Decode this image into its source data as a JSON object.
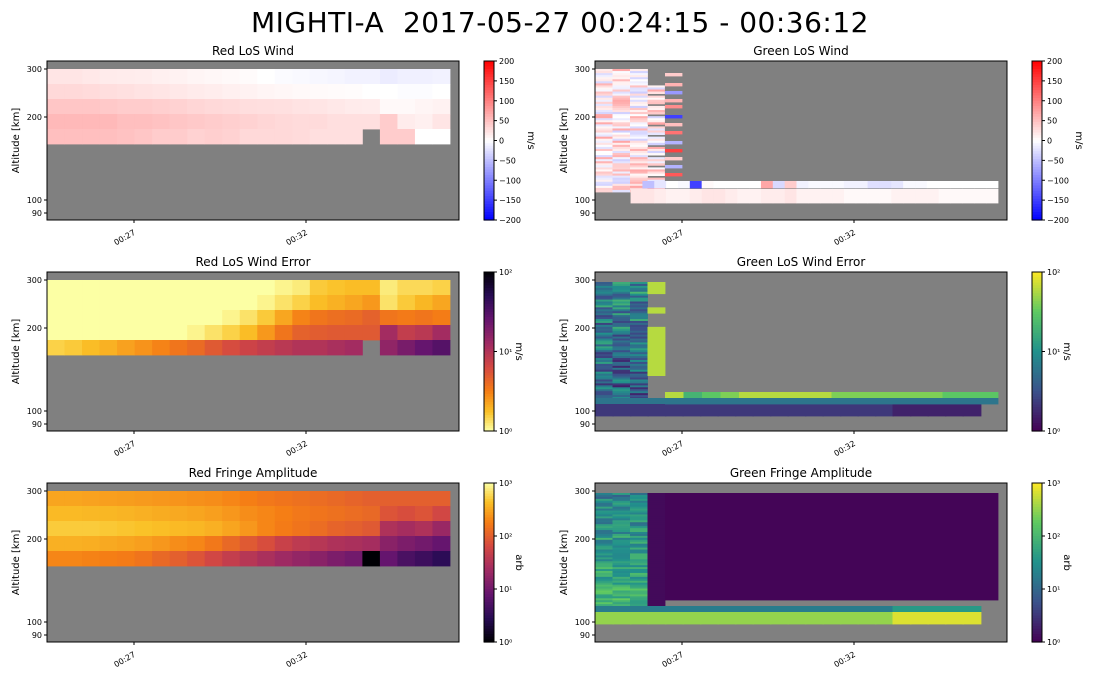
{
  "suptitle": "MIGHTI-A  2017-05-27 00:24:15 - 00:36:12",
  "chart_data": [
    {
      "id": "red-los-wind",
      "type": "heatmap",
      "title": "Red LoS Wind",
      "ylabel": "Altitude [km]",
      "xticks": [
        "00:27",
        "00:32"
      ],
      "yticks": [
        "300",
        "200",
        "100",
        "90"
      ],
      "colorbar": {
        "label": "m/s",
        "scale": "linear",
        "range": [
          -200,
          200
        ],
        "ticks": [
          "200",
          "150",
          "100",
          "50",
          "0",
          "−50",
          "−100",
          "−150",
          "−200"
        ],
        "colormap": "bwr"
      },
      "x_timestamps": [
        "00:24:40",
        "00:25:10",
        "00:25:40",
        "00:26:10",
        "00:26:40",
        "00:27:10",
        "00:27:40",
        "00:28:10",
        "00:28:40",
        "00:29:10",
        "00:29:40",
        "00:30:10",
        "00:30:40",
        "00:31:10",
        "00:31:40",
        "00:32:10",
        "00:32:40",
        "00:33:10",
        "00:33:40",
        "00:34:10",
        "00:34:40",
        "00:35:10",
        "00:35:40"
      ],
      "altitude_rows": [
        "300",
        "270",
        "240",
        "210",
        "180"
      ],
      "values": [
        [
          20,
          20,
          18,
          16,
          15,
          14,
          12,
          10,
          8,
          6,
          5,
          3,
          0,
          -3,
          -5,
          -6,
          -8,
          -10,
          -10,
          -15,
          -12,
          -12,
          -10
        ],
        [
          30,
          30,
          28,
          26,
          24,
          22,
          20,
          18,
          16,
          14,
          12,
          10,
          8,
          6,
          5,
          4,
          3,
          2,
          0,
          0,
          -2,
          -2,
          0
        ],
        [
          45,
          45,
          45,
          42,
          40,
          40,
          38,
          35,
          32,
          30,
          28,
          26,
          25,
          24,
          22,
          20,
          18,
          16,
          15,
          5,
          5,
          8,
          10
        ],
        [
          55,
          55,
          55,
          55,
          50,
          50,
          48,
          45,
          42,
          40,
          38,
          35,
          32,
          30,
          28,
          28,
          25,
          25,
          25,
          40,
          15,
          12,
          20
        ],
        [
          50,
          50,
          50,
          50,
          48,
          45,
          40,
          40,
          35,
          38,
          35,
          30,
          30,
          30,
          28,
          25,
          25,
          25,
          null,
          40,
          40,
          0,
          0
        ]
      ]
    },
    {
      "id": "green-los-wind",
      "type": "heatmap",
      "title": "Green LoS Wind",
      "ylabel": "Altitude [km]",
      "xticks": [
        "00:27",
        "00:32"
      ],
      "yticks": [
        "300",
        "200",
        "100",
        "90"
      ],
      "colorbar": {
        "label": "m/s",
        "scale": "linear",
        "range": [
          -200,
          200
        ],
        "ticks": [
          "200",
          "150",
          "100",
          "50",
          "0",
          "−50",
          "−100",
          "−150",
          "−200"
        ],
        "colormap": "bwr"
      }
    },
    {
      "id": "red-los-wind-error",
      "type": "heatmap",
      "title": "Red LoS Wind Error",
      "ylabel": "Altitude [km]",
      "xticks": [
        "00:27",
        "00:32"
      ],
      "yticks": [
        "300",
        "200",
        "100",
        "90"
      ],
      "colorbar": {
        "label": "m/s",
        "scale": "log",
        "range": [
          1,
          100
        ],
        "ticks": [
          "10²",
          "10¹",
          "10⁰"
        ],
        "colormap": "inferno_r"
      },
      "altitude_rows": [
        "300",
        "270",
        "240",
        "210",
        "180"
      ],
      "values": [
        [
          1.0,
          1.0,
          1.0,
          1.0,
          1.0,
          1.0,
          1.0,
          1.0,
          1.0,
          1.0,
          1.0,
          1.0,
          1.0,
          1.1,
          1.2,
          1.6,
          1.7,
          1.8,
          1.8,
          1.2,
          1.4,
          1.4,
          1.5
        ],
        [
          1.0,
          1.0,
          1.0,
          1.0,
          1.0,
          1.0,
          1.0,
          1.0,
          1.0,
          1.0,
          1.0,
          1.0,
          1.1,
          1.3,
          1.5,
          1.8,
          2.0,
          2.2,
          2.5,
          1.3,
          1.6,
          1.9,
          2.2
        ],
        [
          1.0,
          1.0,
          1.0,
          1.0,
          1.0,
          1.0,
          1.0,
          1.0,
          1.0,
          1.0,
          1.1,
          1.3,
          1.6,
          2.2,
          3.0,
          3.5,
          3.8,
          4.0,
          4.5,
          3.5,
          3.3,
          3.5,
          3.2
        ],
        [
          1.0,
          1.0,
          1.0,
          1.0,
          1.0,
          1.0,
          1.0,
          1.0,
          1.1,
          1.3,
          1.5,
          1.8,
          2.5,
          3.5,
          4.5,
          4.8,
          5.0,
          5.0,
          5.0,
          12,
          8,
          9,
          12
        ],
        [
          1.5,
          1.6,
          1.8,
          2.0,
          2.3,
          2.6,
          3.0,
          3.5,
          4.0,
          5.0,
          6.0,
          7.0,
          8.0,
          9.0,
          10,
          10,
          11,
          12,
          null,
          15,
          20,
          25,
          30
        ]
      ]
    },
    {
      "id": "green-los-wind-error",
      "type": "heatmap",
      "title": "Green LoS Wind Error",
      "ylabel": "Altitude [km]",
      "xticks": [
        "00:27",
        "00:32"
      ],
      "yticks": [
        "300",
        "200",
        "100",
        "90"
      ],
      "colorbar": {
        "label": "m/s",
        "scale": "log",
        "range": [
          1,
          100
        ],
        "ticks": [
          "10²",
          "10¹",
          "10⁰"
        ],
        "colormap": "viridis"
      }
    },
    {
      "id": "red-fringe-amplitude",
      "type": "heatmap",
      "title": "Red Fringe Amplitude",
      "ylabel": "Altitude [km]",
      "xticks": [
        "00:27",
        "00:32"
      ],
      "yticks": [
        "300",
        "200",
        "100",
        "90"
      ],
      "colorbar": {
        "label": "arb",
        "scale": "log",
        "range": [
          1,
          1000
        ],
        "ticks": [
          "10³",
          "10²",
          "10¹",
          "10⁰"
        ],
        "colormap": "inferno"
      },
      "altitude_rows": [
        "300",
        "270",
        "240",
        "210",
        "180"
      ],
      "values": [
        [
          300,
          300,
          290,
          280,
          270,
          260,
          250,
          240,
          230,
          220,
          200,
          180,
          160,
          150,
          140,
          130,
          120,
          110,
          100,
          100,
          100,
          100,
          100
        ],
        [
          400,
          400,
          390,
          380,
          370,
          350,
          330,
          320,
          300,
          280,
          250,
          220,
          200,
          180,
          160,
          150,
          140,
          130,
          120,
          80,
          70,
          80,
          60
        ],
        [
          500,
          500,
          500,
          480,
          460,
          440,
          420,
          400,
          380,
          350,
          300,
          250,
          200,
          170,
          150,
          130,
          110,
          100,
          90,
          30,
          25,
          30,
          20
        ],
        [
          350,
          350,
          340,
          320,
          300,
          280,
          250,
          220,
          200,
          160,
          120,
          90,
          70,
          50,
          40,
          35,
          30,
          28,
          25,
          15,
          12,
          10,
          8
        ],
        [
          200,
          200,
          190,
          180,
          170,
          150,
          120,
          100,
          80,
          60,
          45,
          35,
          28,
          22,
          18,
          15,
          12,
          10,
          1,
          8,
          5,
          4,
          3
        ]
      ]
    },
    {
      "id": "green-fringe-amplitude",
      "type": "heatmap",
      "title": "Green Fringe Amplitude",
      "ylabel": "Altitude [km]",
      "xticks": [
        "00:27",
        "00:32"
      ],
      "yticks": [
        "300",
        "200",
        "100",
        "90"
      ],
      "colorbar": {
        "label": "arb",
        "scale": "log",
        "range": [
          1,
          1000
        ],
        "ticks": [
          "10³",
          "10²",
          "10¹",
          "10⁰"
        ],
        "colormap": "viridis"
      }
    }
  ]
}
